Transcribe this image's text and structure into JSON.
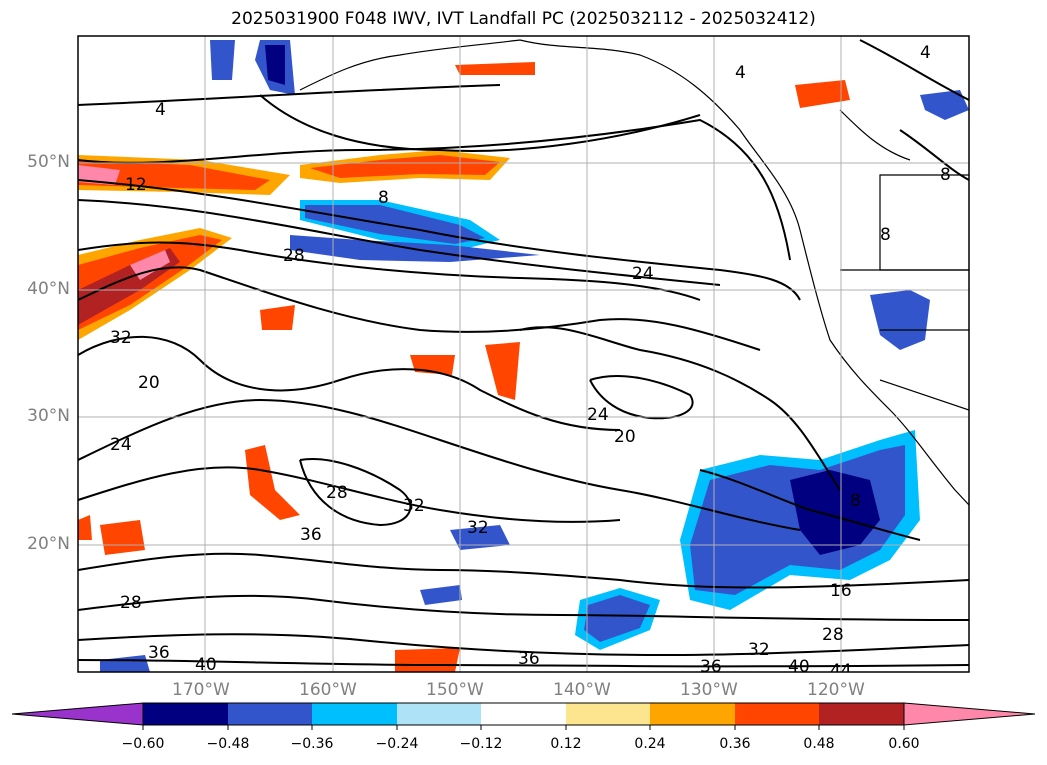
{
  "title": "2025031900 F048 IWV, IVT Landfall PC (2025032112 - 2025032412)",
  "lon_labels": [
    "170°W",
    "160°W",
    "150°W",
    "140°W",
    "130°W",
    "120°W"
  ],
  "lat_labels": [
    "50°N",
    "40°N",
    "30°N",
    "20°N"
  ],
  "colorbar": {
    "ticks": [
      "−0.60",
      "−0.48",
      "−0.36",
      "−0.24",
      "−0.12",
      "0.12",
      "0.24",
      "0.36",
      "0.48",
      "0.60"
    ],
    "colors": [
      "#9933cc",
      "#000080",
      "#3355cc",
      "#00bfff",
      "#aee3f7",
      "#ffffff",
      "#fde58f",
      "#ffa500",
      "#ff4500",
      "#b22222",
      "#ff88aa"
    ]
  },
  "contour_labels": [
    "4",
    "4",
    "4",
    "8",
    "8",
    "8",
    "8",
    "12",
    "16",
    "20",
    "20",
    "24",
    "24",
    "24",
    "28",
    "28",
    "28",
    "28",
    "32",
    "32",
    "32",
    "32",
    "36",
    "36",
    "36",
    "36",
    "40",
    "40",
    "44"
  ],
  "colors": {
    "negative_dark": "#000080",
    "negative_mid": "#3355cc",
    "negative_light": "#00bfff",
    "positive_light": "#ffa500",
    "positive_mid": "#ff4500",
    "positive_dark": "#b22222",
    "positive_max": "#ff88aa"
  }
}
